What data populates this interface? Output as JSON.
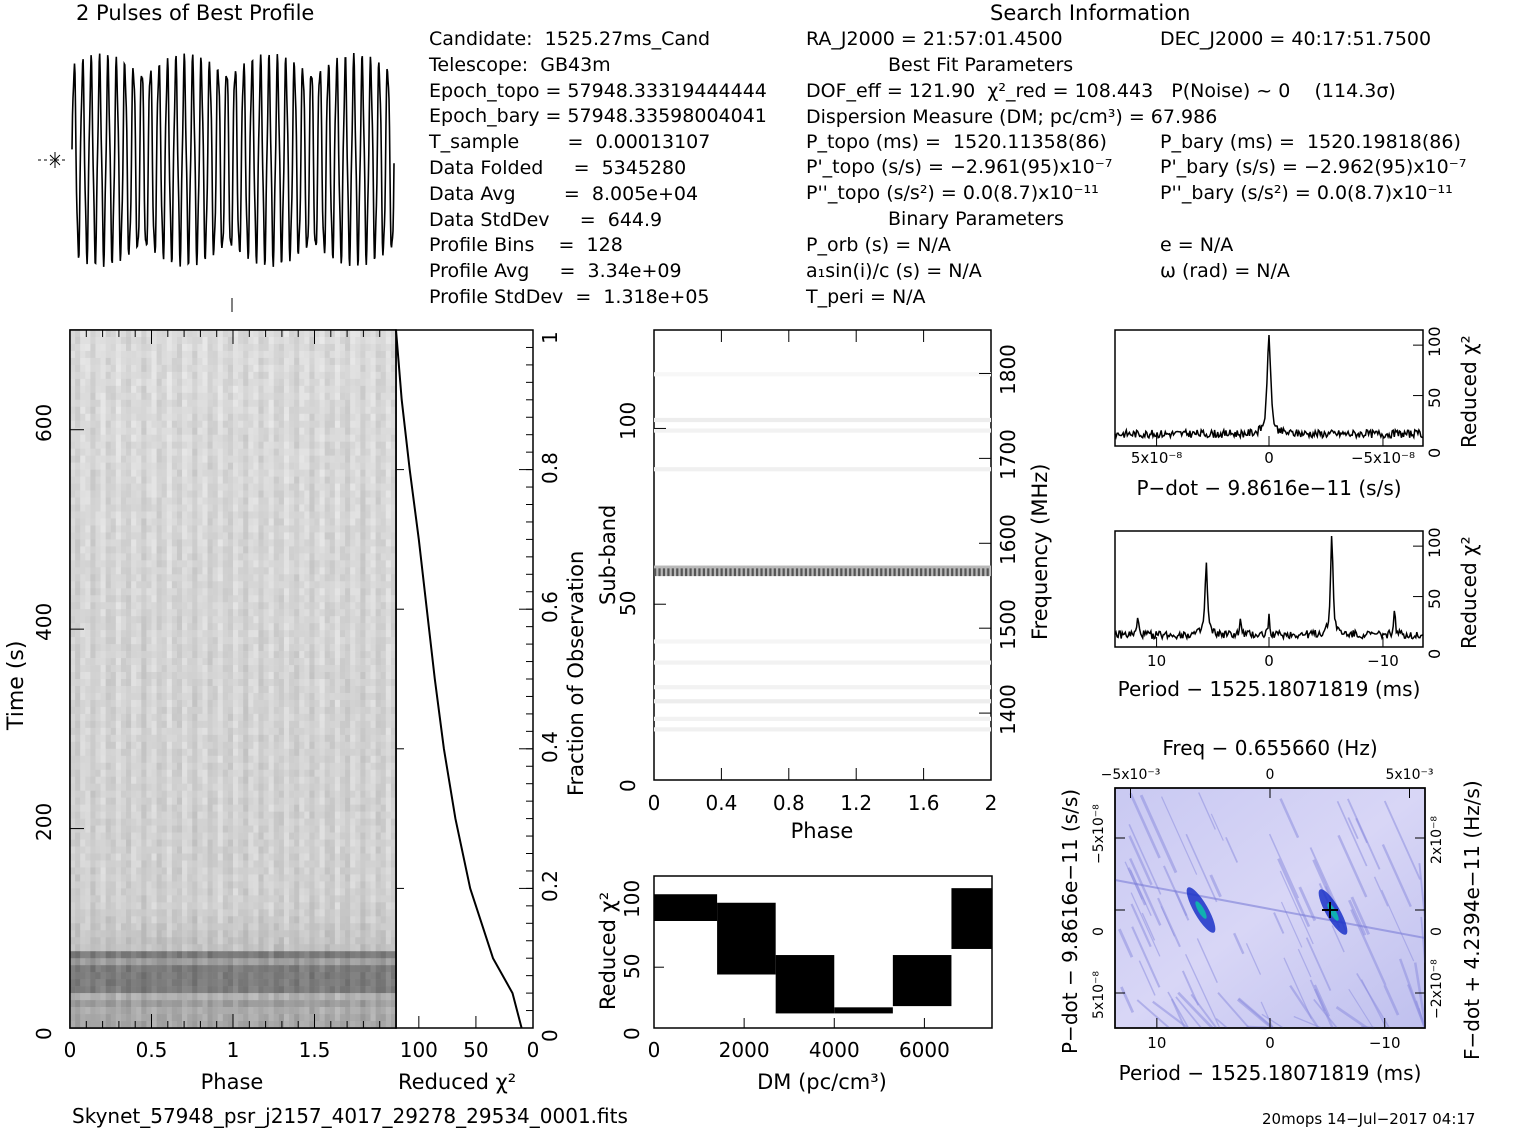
{
  "header": {
    "profile_title": "2 Pulses of Best Profile",
    "search_title": "Search Information",
    "best_fit_title": "Best Fit Parameters",
    "binary_title": "Binary Parameters"
  },
  "info_left": [
    "Candidate:  1525.27ms_Cand",
    "Telescope:  GB43m",
    "Epoch_topo = 57948.33319444444",
    "Epoch_bary = 57948.33598004041",
    "T_sample        =  0.00013107",
    "Data Folded     =  5345280",
    "Data Avg        =  8.005e+04",
    "Data StdDev     =  644.9",
    "Profile Bins    =  128",
    "Profile Avg     =  3.34e+09",
    "Profile StdDev  =  1.318e+05"
  ],
  "info_mid": [
    "RA_J2000 = 21:57:01.4500",
    "DOF_eff = 121.90  χ²_red = 108.443   P(Noise) ~ 0    (114.3σ)",
    "Dispersion Measure (DM; pc/cm³) = 67.986",
    "P_topo (ms) =  1520.11358(86)",
    "P'_topo (s/s) = −2.961(95)x10⁻⁷",
    "P''_topo (s/s²) = 0.0(8.7)x10⁻¹¹",
    "P_orb (s) = N/A",
    "a₁sin(i)/c (s) = N/A",
    "T_peri = N/A"
  ],
  "info_right": [
    "DEC_J2000 = 40:17:51.7500",
    "P_bary (ms) =  1520.19818(86)",
    "P'_bary (s/s) = −2.962(95)x10⁻⁷",
    "P''_bary (s/s²) = 0.0(8.7)x10⁻¹¹",
    "e = N/A",
    "ω (rad) = N/A"
  ],
  "footer": {
    "filename": "Skynet_57948_psr_j2157_4017_29278_29534_0001.fits",
    "stamp": "20mops 14−Jul−2017 04:17"
  },
  "chart_data": [
    {
      "id": "profile",
      "type": "line",
      "title": "2 Pulses of Best Profile",
      "x_range": [
        0,
        2
      ],
      "description_points": 128,
      "waveform": "sinusoid-like ~38 cycles across two pulses"
    },
    {
      "id": "time_phase",
      "type": "heatmap",
      "xlabel": "Phase",
      "ylabel": "Time (s)",
      "xticks": [
        "0",
        "0.5",
        "1",
        "1.5"
      ],
      "yticks": [
        "0",
        "200",
        "400",
        "600"
      ],
      "xlim": [
        0,
        2
      ],
      "ylim": [
        0,
        700
      ]
    },
    {
      "id": "time_chi2",
      "type": "line",
      "xlabel": "Reduced χ²",
      "ylabel": "Fraction of Observation",
      "xticks": [
        "100",
        "50",
        "0"
      ],
      "yticks": [
        "0",
        "0.2",
        "0.4",
        "0.6",
        "0.8",
        "1"
      ],
      "xlim": [
        120,
        0
      ],
      "ylim": [
        0,
        1
      ],
      "x": [
        10,
        18,
        35,
        55,
        68,
        78,
        86,
        93,
        100,
        108,
        115,
        120
      ],
      "y": [
        0.0,
        0.05,
        0.1,
        0.2,
        0.3,
        0.4,
        0.5,
        0.6,
        0.7,
        0.8,
        0.9,
        1.0
      ]
    },
    {
      "id": "subband_phase",
      "type": "heatmap",
      "xlabel": "Phase",
      "ylabel": "Sub-band",
      "y2label": "Frequency (MHz)",
      "xticks": [
        "0",
        "0.4",
        "0.8",
        "1.2",
        "1.6",
        "2"
      ],
      "yticks": [
        "0",
        "50",
        "100"
      ],
      "y2ticks": [
        "1400",
        "1500",
        "1600",
        "1700",
        "1800"
      ],
      "xlim": [
        0,
        2
      ],
      "ylim": [
        0,
        128
      ],
      "strong_band_subband": 58
    },
    {
      "id": "dm_chi2",
      "type": "area",
      "xlabel": "DM (pc/cm³)",
      "ylabel": "Reduced χ²",
      "xticks": [
        "0",
        "2000",
        "4000",
        "6000"
      ],
      "yticks": [
        "0",
        "50",
        "100"
      ],
      "xlim": [
        0,
        7500
      ],
      "ylim": [
        0,
        125
      ],
      "segments": [
        {
          "x0": 0,
          "x1": 1400,
          "lo": 88,
          "hi": 110
        },
        {
          "x0": 1400,
          "x1": 2700,
          "lo": 44,
          "hi": 103
        },
        {
          "x0": 2700,
          "x1": 4000,
          "lo": 12,
          "hi": 60
        },
        {
          "x0": 4000,
          "x1": 5300,
          "lo": 12,
          "hi": 17
        },
        {
          "x0": 5300,
          "x1": 6600,
          "lo": 18,
          "hi": 60
        },
        {
          "x0": 6600,
          "x1": 7500,
          "lo": 65,
          "hi": 115
        }
      ]
    },
    {
      "id": "pdot_chi2",
      "type": "line",
      "xlabel": "P−dot − 9.8616e−11 (s/s)",
      "ylabel": "Reduced χ²",
      "xticks": [
        "5x10⁻⁸",
        "0",
        "−5x10⁻⁸"
      ],
      "yticks": [
        "0",
        "50",
        "100"
      ],
      "xlim": [
        7.5e-08,
        -7.5e-08
      ],
      "ylim": [
        0,
        115
      ],
      "peak_x": 0,
      "peak_y": 108
    },
    {
      "id": "period_chi2",
      "type": "line",
      "xlabel": "Period − 1525.18071819 (ms)",
      "ylabel": "Reduced χ²",
      "xticks": [
        "10",
        "0",
        "−10"
      ],
      "yticks": [
        "0",
        "50",
        "100"
      ],
      "xlim": [
        14,
        -13
      ],
      "ylim": [
        0,
        115
      ],
      "peaks": [
        {
          "x": 6,
          "y": 75
        },
        {
          "x": -5,
          "y": 108
        }
      ]
    },
    {
      "id": "period_pdot",
      "type": "heatmap",
      "title": "Freq − 0.655660 (Hz)",
      "xlabel": "Period − 1525.18071819 (ms)",
      "ylabel": "P−dot − 9.8616e−11 (s/s)",
      "y2label": "F−dot + 4.2394e−11 (Hz/s)",
      "xticks": [
        "10",
        "0",
        "−10"
      ],
      "topticks": [
        "−5x10⁻³",
        "0",
        "5x10⁻³"
      ],
      "yticks": [
        "−5x10⁻⁸",
        "0",
        "5x10⁻⁸"
      ],
      "y2ticks": [
        "2x10⁻⁸",
        "0",
        "−2x10⁻⁸"
      ]
    }
  ]
}
